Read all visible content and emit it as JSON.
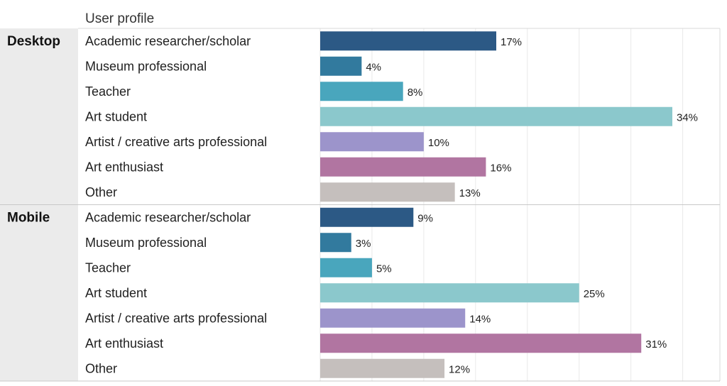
{
  "chart_data": {
    "type": "bar",
    "orientation": "horizontal",
    "header": "User profile",
    "xlim": [
      0,
      36
    ],
    "grid": true,
    "value_suffix": "%",
    "groups": [
      {
        "name": "Desktop",
        "bars": [
          {
            "label": "Academic researcher/scholar",
            "value": 17,
            "color": "#2c5985"
          },
          {
            "label": "Museum professional",
            "value": 4,
            "color": "#327a9e"
          },
          {
            "label": "Teacher",
            "value": 8,
            "color": "#49a6bd"
          },
          {
            "label": "Art student",
            "value": 34,
            "color": "#8bc8cc"
          },
          {
            "label": "Artist / creative arts professional",
            "value": 10,
            "color": "#9c94cb"
          },
          {
            "label": "Art enthusiast",
            "value": 16,
            "color": "#b175a1"
          },
          {
            "label": "Other",
            "value": 13,
            "color": "#c5bfbd"
          }
        ]
      },
      {
        "name": "Mobile",
        "bars": [
          {
            "label": "Academic researcher/scholar",
            "value": 9,
            "color": "#2c5985"
          },
          {
            "label": "Museum professional",
            "value": 3,
            "color": "#327a9e"
          },
          {
            "label": "Teacher",
            "value": 5,
            "color": "#49a6bd"
          },
          {
            "label": "Art student",
            "value": 25,
            "color": "#8bc8cc"
          },
          {
            "label": "Artist / creative arts professional",
            "value": 14,
            "color": "#9c94cb"
          },
          {
            "label": "Art enthusiast",
            "value": 31,
            "color": "#b175a1"
          },
          {
            "label": "Other",
            "value": 12,
            "color": "#c5bfbd"
          }
        ]
      }
    ]
  }
}
